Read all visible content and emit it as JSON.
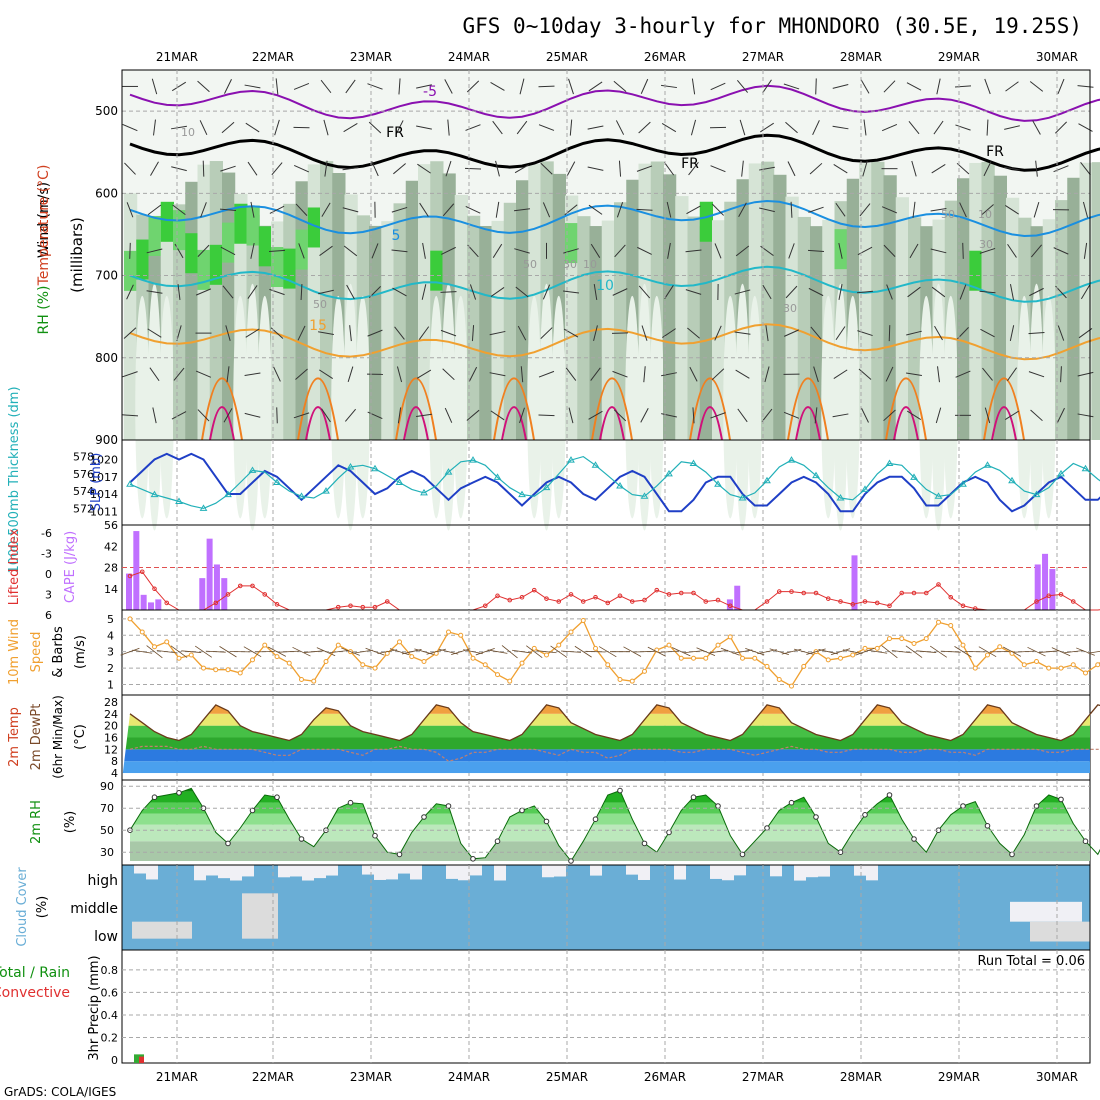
{
  "title": "GFS 0~10day 3-hourly for MHONDORO (30.5E, 19.25S)",
  "footer": "GrADS: COLA/IGES",
  "dates": [
    "21MAR",
    "22MAR",
    "23MAR",
    "24MAR",
    "25MAR",
    "26MAR",
    "27MAR",
    "28MAR",
    "29MAR",
    "30MAR"
  ],
  "colors": {
    "frame": "#000000",
    "grid": "#a8a8a8",
    "slp": "#1f3fc6",
    "thickness": "#22b0b8",
    "cape": "#c070ff",
    "lifted": "#e03030",
    "wind": "#f0a030",
    "rh_line": "#009900",
    "cloud": "#6aaed6",
    "cloud_clear": "#f0f0f5",
    "cloud_low_gray": "#dcdcdc"
  },
  "chart_data": [
    {
      "type": "heatmap",
      "panel": "upper-air",
      "ylabel_parts": [
        "RH (%)",
        "Temperature (°C)",
        "Wind (m/s)"
      ],
      "yunit": "(millibars)",
      "yticks": [
        500,
        600,
        700,
        800,
        900
      ],
      "ylim": [
        450,
        900
      ],
      "isotherm_labels": [
        "-5",
        "FR",
        "FR",
        "FR",
        "5",
        "10",
        "15"
      ],
      "rh_labels": [
        "10",
        "50",
        "30",
        "10",
        "50",
        "30",
        "10",
        "30",
        "50"
      ],
      "isotherms": [
        {
          "label": "-5",
          "base_mb": 490
        },
        {
          "label": "FR",
          "base_mb": 550
        },
        {
          "label": "5",
          "base_mb": 630
        },
        {
          "label": "10",
          "base_mb": 710
        },
        {
          "label": "15",
          "base_mb": 780
        }
      ]
    },
    {
      "type": "line",
      "panel": "slp-thickness",
      "ylabel_left": "1000-500mb Thickness (dm)",
      "ylabel_right": "SLP (mb)",
      "left_ticks": [
        572,
        574,
        576,
        578
      ],
      "right_ticks": [
        1011,
        1014,
        1017,
        1020
      ],
      "series": [
        {
          "name": "SLP (mb)",
          "values": [
            1016,
            1018,
            1020,
            1021,
            1020,
            1021,
            1020,
            1017,
            1014,
            1014,
            1016,
            1018,
            1017,
            1015,
            1013,
            1015,
            1017,
            1019,
            1018,
            1016,
            1014,
            1015,
            1017,
            1018,
            1017,
            1015,
            1013,
            1015,
            1016,
            1017,
            1016,
            1014,
            1012,
            1014,
            1016,
            1017,
            1016,
            1014,
            1013,
            1015,
            1017,
            1018,
            1017,
            1014,
            1011,
            1011,
            1013,
            1016,
            1017,
            1017,
            1014,
            1012,
            1012,
            1014,
            1016,
            1017,
            1016,
            1014,
            1011,
            1011,
            1014,
            1016,
            1017,
            1017,
            1015,
            1012,
            1012,
            1014,
            1016,
            1017,
            1016,
            1013,
            1011,
            1012,
            1014,
            1016,
            1017,
            1015,
            1013,
            1013,
            1015,
            1017,
            1018,
            1016,
            1014,
            1012,
            1014,
            1016,
            1017,
            1018
          ]
        },
        {
          "name": "Thickness (dm)",
          "values": [
            574.8,
            574.2,
            573.6,
            573.2,
            572.8,
            572.3,
            572.0,
            572.6,
            573.6,
            575.0,
            576.4,
            576.2,
            575.0,
            574.0,
            573.4,
            573.2,
            574.0,
            575.5,
            576.8,
            577.0,
            576.6,
            575.8,
            575.0,
            574.2,
            573.8,
            574.6,
            576.2,
            577.4,
            577.6,
            577.0,
            575.6,
            574.4,
            573.6,
            573.4,
            574.4,
            576.0,
            577.6,
            578.0,
            577.0,
            575.8,
            574.6,
            573.6,
            573.4,
            574.6,
            576.0,
            577.4,
            577.2,
            576.2,
            574.8,
            573.6,
            573.2,
            573.8,
            575.2,
            576.8,
            577.6,
            577.0,
            575.8,
            574.4,
            573.2,
            573.0,
            574.2,
            576.0,
            577.2,
            577.0,
            575.6,
            574.2,
            573.4,
            573.6,
            574.8,
            576.2,
            577.0,
            576.4,
            575.2,
            574.0,
            573.6,
            574.4,
            576.0,
            577.2,
            576.6,
            575.4,
            574.4,
            574.0,
            574.6,
            575.4,
            575.8,
            575.0,
            574.4,
            574.6,
            575.0,
            575.4
          ]
        }
      ]
    },
    {
      "type": "bar",
      "panel": "cape-li",
      "ylabel_left": "Lifted Index",
      "ylabel_right": "CAPE (J/kg)",
      "left_ticks": [
        "-6",
        "-3",
        "0",
        "3",
        "6"
      ],
      "right_ticks": [
        14,
        28,
        42,
        56
      ],
      "series": [
        {
          "name": "CAPE (J/kg)",
          "values": [
            24,
            52,
            10,
            5,
            7,
            0,
            0,
            0,
            0,
            0,
            21,
            47,
            30,
            21,
            0,
            0,
            0,
            0,
            0,
            0,
            0,
            0,
            0,
            0,
            0,
            0,
            0,
            0,
            0,
            0,
            0,
            0,
            0,
            0,
            0,
            0,
            0,
            0,
            0,
            0,
            0,
            0,
            0,
            0,
            0,
            0,
            0,
            0,
            0,
            0,
            0,
            0,
            0,
            0,
            0,
            0,
            0,
            0,
            0,
            0,
            0,
            0,
            0,
            0,
            0,
            0,
            0,
            0,
            0,
            0,
            0,
            0,
            0,
            0,
            0,
            0,
            0,
            0,
            0,
            0,
            0,
            0,
            7,
            16,
            0,
            0,
            0,
            0,
            0,
            0,
            0,
            0,
            0,
            0,
            0,
            0,
            0,
            0,
            0,
            36,
            0,
            0,
            0,
            0,
            0,
            0,
            0,
            0,
            0,
            0,
            0,
            0,
            0,
            0,
            0,
            0,
            0,
            0,
            0,
            0,
            0,
            0,
            0,
            0,
            30,
            37,
            27,
            0,
            0,
            0,
            0
          ]
        },
        {
          "name": "Lifted Index",
          "values": [
            1.2,
            0.6,
            3.0,
            5.0,
            6.0,
            6.0,
            6.0,
            5.0,
            3.8,
            2.6,
            2.6,
            3.8,
            5.2,
            6.0,
            6.0,
            6.0,
            6.0,
            5.6,
            5.4,
            5.6,
            5.6,
            4.8,
            6.0,
            6.0,
            6.0,
            6.0,
            6.0,
            6.0,
            6.0,
            5.4,
            4.0,
            4.6,
            4.2,
            3.2,
            4.4,
            4.8,
            3.8,
            4.8,
            4.2,
            5.0,
            4.0,
            4.8,
            4.6,
            3.2,
            3.8,
            3.6,
            3.6,
            4.8,
            4.6,
            5.4,
            6.0,
            6.0,
            4.8,
            3.4,
            3.4,
            3.6,
            3.6,
            4.4,
            4.8,
            5.2,
            4.8,
            5.0,
            5.4,
            3.6,
            3.6,
            3.6,
            2.4,
            4.2,
            5.4,
            5.8,
            6.0,
            6.0,
            6.0,
            6.0,
            4.8,
            4.0,
            3.8,
            4.8,
            6.0,
            6.0,
            5.8,
            5.2,
            2.6,
            1.8,
            3.0,
            3.2,
            2.6,
            2.8,
            2.2,
            0.8
          ]
        }
      ]
    },
    {
      "type": "line",
      "panel": "wind10m",
      "ylabel": "10m Wind Speed & Barbs (m/s)",
      "yticks": [
        1,
        2,
        3,
        4,
        5
      ],
      "series": [
        {
          "name": "Wind speed (m/s)",
          "values": [
            5.0,
            4.2,
            3.3,
            3.6,
            2.6,
            2.8,
            2.0,
            1.9,
            1.9,
            1.7,
            2.5,
            3.4,
            2.7,
            2.3,
            1.3,
            1.2,
            2.4,
            3.4,
            3.0,
            2.2,
            2.0,
            2.9,
            3.6,
            2.7,
            2.4,
            2.9,
            4.2,
            4.0,
            2.6,
            2.2,
            1.6,
            1.2,
            2.3,
            3.2,
            2.8,
            3.4,
            4.2,
            4.9,
            3.2,
            2.2,
            1.3,
            1.2,
            1.8,
            3.1,
            3.4,
            2.6,
            2.6,
            2.6,
            3.4,
            3.9,
            2.6,
            2.6,
            2.1,
            1.3,
            0.9,
            2.1,
            3.0,
            2.5,
            2.6,
            2.8,
            3.2,
            3.2,
            3.8,
            3.8,
            3.5,
            3.8,
            4.8,
            4.6,
            3.4,
            2.0,
            2.8,
            3.3,
            2.9,
            2.2,
            2.4,
            2.0,
            2.0,
            2.2,
            1.7,
            2.2,
            2.9,
            3.4,
            4.0,
            3.2,
            2.0,
            2.0,
            2.2,
            1.8,
            1.8,
            2.0
          ]
        }
      ]
    },
    {
      "type": "area",
      "panel": "temperature",
      "ylabel": "2m Temp, 2m DewPt (6hr Min/Max) (°C)",
      "yticks": [
        4,
        8,
        12,
        16,
        20,
        24,
        28
      ],
      "series": [
        {
          "name": "2m Temp (°C)",
          "values": [
            24,
            21,
            18,
            16,
            15,
            17,
            22,
            27,
            25,
            20,
            18,
            17,
            16,
            15,
            17,
            22,
            26,
            25,
            20,
            18,
            17,
            16,
            15,
            17,
            22,
            27,
            26,
            21,
            18,
            17,
            16,
            15,
            17,
            22,
            27,
            26,
            21,
            19,
            17,
            16,
            15,
            17,
            22,
            27,
            26,
            21,
            19,
            17,
            16,
            15,
            17,
            22,
            27,
            26,
            21,
            19,
            17,
            16,
            15,
            17,
            22,
            27,
            26,
            21,
            19,
            17,
            16,
            15,
            17,
            22,
            27,
            26,
            21,
            19,
            17,
            16,
            15,
            17,
            22,
            27,
            26,
            21,
            19,
            17,
            16,
            15,
            17,
            17,
            18,
            20
          ]
        },
        {
          "name": "2m DewPt (°C)",
          "values": [
            12,
            13,
            13,
            13,
            12,
            12,
            13,
            12,
            12,
            12,
            12,
            11,
            10,
            10,
            12,
            12,
            12,
            12,
            11,
            10,
            12,
            12,
            13,
            12,
            12,
            11,
            8,
            9,
            11,
            11,
            12,
            12,
            12,
            12,
            11,
            10,
            12,
            11,
            11,
            9,
            10,
            12,
            12,
            12,
            12,
            11,
            11,
            12,
            12,
            12,
            11,
            10,
            11,
            12,
            13,
            12,
            12,
            11,
            11,
            12,
            12,
            12,
            12,
            11,
            11,
            12,
            12,
            11,
            11,
            10,
            12,
            12,
            12,
            12,
            12,
            11,
            11,
            12,
            12,
            12,
            12,
            11,
            11,
            12,
            12,
            12,
            11,
            10,
            11,
            12
          ]
        }
      ]
    },
    {
      "type": "area",
      "panel": "rh2m",
      "ylabel": "2m RH (%)",
      "yticks": [
        30,
        50,
        70,
        90
      ],
      "series": [
        {
          "name": "2m RH (%)",
          "values": [
            50,
            68,
            80,
            82,
            84,
            88,
            70,
            48,
            38,
            52,
            68,
            82,
            80,
            60,
            42,
            35,
            50,
            70,
            75,
            74,
            45,
            30,
            28,
            48,
            62,
            74,
            72,
            38,
            24,
            25,
            40,
            62,
            68,
            72,
            58,
            36,
            22,
            40,
            60,
            82,
            86,
            60,
            38,
            30,
            48,
            68,
            80,
            82,
            72,
            45,
            28,
            40,
            52,
            68,
            75,
            80,
            62,
            38,
            30,
            48,
            64,
            74,
            82,
            60,
            42,
            30,
            50,
            64,
            72,
            76,
            54,
            38,
            28,
            46,
            72,
            82,
            78,
            56,
            40,
            28,
            50,
            66,
            70,
            68,
            58,
            42,
            30,
            52,
            62,
            66
          ]
        }
      ]
    },
    {
      "type": "table",
      "panel": "cloud",
      "ylabel": "Cloud Cover (%)",
      "levels": [
        "high",
        "middle",
        "low"
      ]
    },
    {
      "type": "bar",
      "panel": "precip",
      "ylabel_left": "Total / Rain",
      "ylabel_left2": "Convective",
      "ylabel_right": "3hr Precip (mm)",
      "yticks": [
        "0",
        "0.2",
        "0.4",
        "0.6",
        "0.8"
      ],
      "run_total": "Run Total = 0.06",
      "series": [
        {
          "name": "Total (mm)",
          "values": [
            0.05,
            0,
            0,
            0,
            0,
            0,
            0,
            0,
            0,
            0
          ]
        },
        {
          "name": "Convective (mm)",
          "values": [
            0.03,
            0,
            0,
            0,
            0,
            0,
            0,
            0,
            0,
            0
          ]
        }
      ]
    }
  ]
}
